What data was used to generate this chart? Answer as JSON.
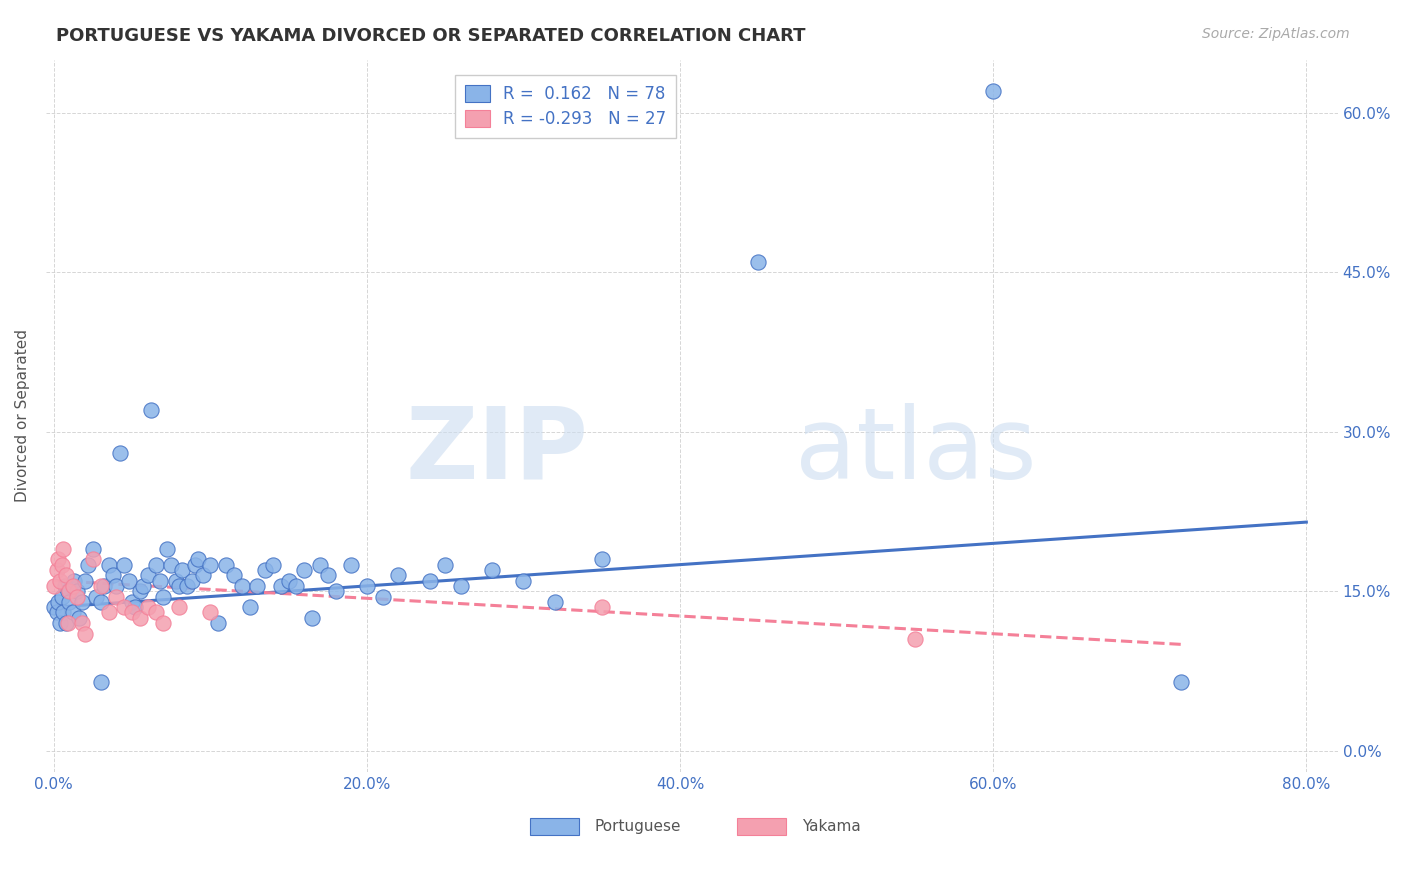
{
  "title": "PORTUGUESE VS YAKAMA DIVORCED OR SEPARATED CORRELATION CHART",
  "source": "Source: ZipAtlas.com",
  "ylabel": "Divorced or Separated",
  "xlim": [
    -0.005,
    0.82
  ],
  "ylim": [
    -0.02,
    0.65
  ],
  "portuguese_color": "#8ab4e8",
  "yakama_color": "#f4a0b0",
  "portuguese_line_color": "#4472c4",
  "yakama_line_color": "#f48098",
  "legend_R_portuguese": "R =  0.162",
  "legend_N_portuguese": "N = 78",
  "legend_R_yakama": "R = -0.293",
  "legend_N_yakama": "N = 27",
  "watermark_zip": "ZIP",
  "watermark_atlas": "atlas",
  "portuguese_points": [
    [
      0.0,
      0.135
    ],
    [
      0.002,
      0.13
    ],
    [
      0.003,
      0.14
    ],
    [
      0.004,
      0.12
    ],
    [
      0.005,
      0.145
    ],
    [
      0.006,
      0.13
    ],
    [
      0.007,
      0.155
    ],
    [
      0.008,
      0.12
    ],
    [
      0.009,
      0.15
    ],
    [
      0.01,
      0.14
    ],
    [
      0.012,
      0.13
    ],
    [
      0.013,
      0.16
    ],
    [
      0.015,
      0.15
    ],
    [
      0.016,
      0.125
    ],
    [
      0.018,
      0.14
    ],
    [
      0.02,
      0.16
    ],
    [
      0.022,
      0.175
    ],
    [
      0.025,
      0.19
    ],
    [
      0.027,
      0.145
    ],
    [
      0.03,
      0.14
    ],
    [
      0.032,
      0.155
    ],
    [
      0.035,
      0.175
    ],
    [
      0.038,
      0.165
    ],
    [
      0.04,
      0.155
    ],
    [
      0.042,
      0.28
    ],
    [
      0.045,
      0.175
    ],
    [
      0.048,
      0.16
    ],
    [
      0.05,
      0.14
    ],
    [
      0.052,
      0.135
    ],
    [
      0.055,
      0.15
    ],
    [
      0.057,
      0.155
    ],
    [
      0.06,
      0.165
    ],
    [
      0.062,
      0.32
    ],
    [
      0.065,
      0.175
    ],
    [
      0.068,
      0.16
    ],
    [
      0.07,
      0.145
    ],
    [
      0.072,
      0.19
    ],
    [
      0.075,
      0.175
    ],
    [
      0.078,
      0.16
    ],
    [
      0.08,
      0.155
    ],
    [
      0.082,
      0.17
    ],
    [
      0.085,
      0.155
    ],
    [
      0.088,
      0.16
    ],
    [
      0.09,
      0.175
    ],
    [
      0.092,
      0.18
    ],
    [
      0.095,
      0.165
    ],
    [
      0.1,
      0.175
    ],
    [
      0.105,
      0.12
    ],
    [
      0.11,
      0.175
    ],
    [
      0.115,
      0.165
    ],
    [
      0.12,
      0.155
    ],
    [
      0.125,
      0.135
    ],
    [
      0.13,
      0.155
    ],
    [
      0.135,
      0.17
    ],
    [
      0.14,
      0.175
    ],
    [
      0.145,
      0.155
    ],
    [
      0.15,
      0.16
    ],
    [
      0.155,
      0.155
    ],
    [
      0.16,
      0.17
    ],
    [
      0.165,
      0.125
    ],
    [
      0.17,
      0.175
    ],
    [
      0.175,
      0.165
    ],
    [
      0.18,
      0.15
    ],
    [
      0.19,
      0.175
    ],
    [
      0.2,
      0.155
    ],
    [
      0.21,
      0.145
    ],
    [
      0.22,
      0.165
    ],
    [
      0.24,
      0.16
    ],
    [
      0.25,
      0.175
    ],
    [
      0.26,
      0.155
    ],
    [
      0.28,
      0.17
    ],
    [
      0.3,
      0.16
    ],
    [
      0.32,
      0.14
    ],
    [
      0.35,
      0.18
    ],
    [
      0.45,
      0.46
    ],
    [
      0.6,
      0.62
    ],
    [
      0.72,
      0.065
    ],
    [
      0.03,
      0.065
    ]
  ],
  "yakama_points": [
    [
      0.0,
      0.155
    ],
    [
      0.002,
      0.17
    ],
    [
      0.003,
      0.18
    ],
    [
      0.004,
      0.16
    ],
    [
      0.005,
      0.175
    ],
    [
      0.006,
      0.19
    ],
    [
      0.008,
      0.165
    ],
    [
      0.009,
      0.12
    ],
    [
      0.01,
      0.15
    ],
    [
      0.012,
      0.155
    ],
    [
      0.015,
      0.145
    ],
    [
      0.018,
      0.12
    ],
    [
      0.02,
      0.11
    ],
    [
      0.025,
      0.18
    ],
    [
      0.03,
      0.155
    ],
    [
      0.035,
      0.13
    ],
    [
      0.04,
      0.145
    ],
    [
      0.045,
      0.135
    ],
    [
      0.05,
      0.13
    ],
    [
      0.055,
      0.125
    ],
    [
      0.06,
      0.135
    ],
    [
      0.065,
      0.13
    ],
    [
      0.07,
      0.12
    ],
    [
      0.08,
      0.135
    ],
    [
      0.1,
      0.13
    ],
    [
      0.35,
      0.135
    ],
    [
      0.55,
      0.105
    ]
  ],
  "portuguese_trend_x": [
    0.0,
    0.8
  ],
  "portuguese_trend_y": [
    0.135,
    0.215
  ],
  "yakama_trend_x": [
    0.0,
    0.72
  ],
  "yakama_trend_y": [
    0.16,
    0.1
  ]
}
